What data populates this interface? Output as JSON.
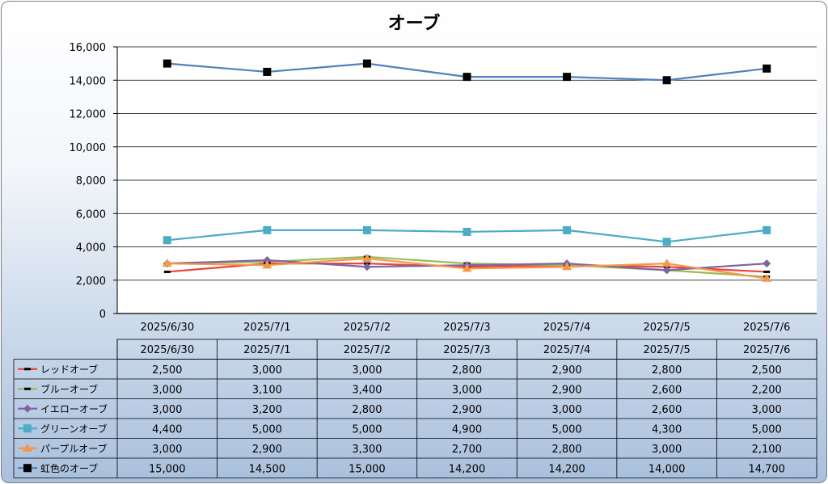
{
  "chart_data": {
    "type": "line",
    "title": "オーブ",
    "categories": [
      "2025/6/30",
      "2025/7/1",
      "2025/7/2",
      "2025/7/3",
      "2025/7/4",
      "2025/7/5",
      "2025/7/6"
    ],
    "ylim": [
      0,
      16000
    ],
    "yticks": [
      0,
      2000,
      4000,
      6000,
      8000,
      10000,
      12000,
      14000,
      16000
    ],
    "ytick_labels": [
      "0",
      "2,000",
      "4,000",
      "6,000",
      "8,000",
      "10,000",
      "12,000",
      "14,000",
      "16,000"
    ],
    "grid": true,
    "legend": "data-table",
    "series": [
      {
        "name": "レッドオーブ",
        "values": [
          2500,
          3000,
          3000,
          2800,
          2900,
          2800,
          2500
        ],
        "labels": [
          "2,500",
          "3,000",
          "3,000",
          "2,800",
          "2,900",
          "2,800",
          "2,500"
        ],
        "color": "#e8453c",
        "marker": "dash"
      },
      {
        "name": "ブルーオーブ",
        "values": [
          3000,
          3100,
          3400,
          3000,
          2900,
          2600,
          2200
        ],
        "labels": [
          "3,000",
          "3,100",
          "3,400",
          "3,000",
          "2,900",
          "2,600",
          "2,200"
        ],
        "color": "#9bbb59",
        "marker": "dash"
      },
      {
        "name": "イエローオーブ",
        "values": [
          3000,
          3200,
          2800,
          2900,
          3000,
          2600,
          3000
        ],
        "labels": [
          "3,000",
          "3,200",
          "2,800",
          "2,900",
          "3,000",
          "2,600",
          "3,000"
        ],
        "color": "#8064a2",
        "marker": "diamond"
      },
      {
        "name": "グリーンオーブ",
        "values": [
          4400,
          5000,
          5000,
          4900,
          5000,
          4300,
          5000
        ],
        "labels": [
          "4,400",
          "5,000",
          "5,000",
          "4,900",
          "5,000",
          "4,300",
          "5,000"
        ],
        "color": "#4bacc6",
        "marker": "square"
      },
      {
        "name": "パープルオーブ",
        "values": [
          3000,
          2900,
          3300,
          2700,
          2800,
          3000,
          2100
        ],
        "labels": [
          "3,000",
          "2,900",
          "3,300",
          "2,700",
          "2,800",
          "3,000",
          "2,100"
        ],
        "color": "#f79646",
        "marker": "triangle"
      },
      {
        "name": "虹色のオーブ",
        "values": [
          15000,
          14500,
          15000,
          14200,
          14200,
          14000,
          14700
        ],
        "labels": [
          "15,000",
          "14,500",
          "15,000",
          "14,200",
          "14,200",
          "14,000",
          "14,700"
        ],
        "color": "#4f81bd",
        "marker": "square-black"
      }
    ]
  }
}
